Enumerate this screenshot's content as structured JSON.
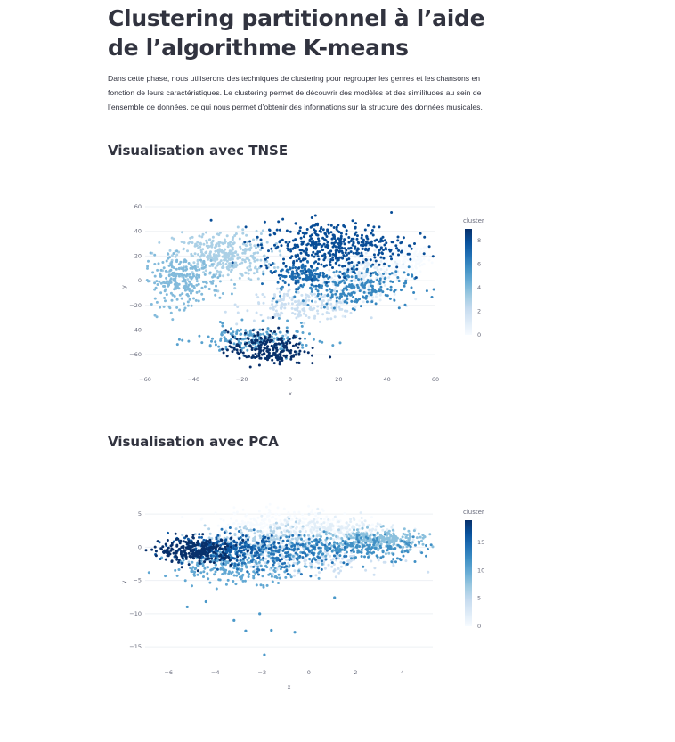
{
  "page": {
    "title": "Clustering partitionnel à l’aide de l’algorithme K-means",
    "intro": "Dans cette phase, nous utiliserons des techniques de clustering pour regrouper les genres et les chansons en fonction de leurs caractéristiques. Le clustering permet de découvrir des modèles et des similitudes au sein de l’ensemble de données, ce qui nous permet d’obtenir des informations sur la structure des données musicales.",
    "section_tnse": "Visualisation avec TNSE",
    "section_pca": "Visualisation avec PCA"
  },
  "colors": {
    "scale": [
      "#f7fbff",
      "#deebf7",
      "#c6dbef",
      "#9ecae1",
      "#6baed6",
      "#4292c6",
      "#2171b5",
      "#08519c",
      "#08306b"
    ]
  },
  "chart_data": [
    {
      "type": "scatter",
      "title": "",
      "xlabel": "x",
      "ylabel": "y",
      "xlim": [
        -60,
        60
      ],
      "ylim": [
        -70,
        60
      ],
      "xticks": [
        -60,
        -40,
        -20,
        0,
        20,
        40,
        60
      ],
      "yticks": [
        60,
        40,
        20,
        0,
        -20,
        -40,
        -60
      ],
      "grid": true,
      "legend": "right",
      "colorbar": {
        "title": "cluster",
        "min": 0,
        "max": 9,
        "ticks": [
          0,
          2,
          4,
          6,
          8
        ]
      },
      "clusters": [
        {
          "cluster": 0,
          "cx": 48,
          "cy": 18,
          "sx": 5,
          "sy": 6,
          "n": 160
        },
        {
          "cluster": 1,
          "cx": 30,
          "cy": 5,
          "sx": 8,
          "sy": 10,
          "n": 220
        },
        {
          "cluster": 2,
          "cx": 5,
          "cy": -20,
          "sx": 12,
          "sy": 6,
          "n": 200
        },
        {
          "cluster": 3,
          "cx": -28,
          "cy": 20,
          "sx": 10,
          "sy": 10,
          "n": 350
        },
        {
          "cluster": 4,
          "cx": -45,
          "cy": 0,
          "sx": 8,
          "sy": 10,
          "n": 260
        },
        {
          "cluster": 5,
          "cx": -15,
          "cy": -48,
          "sx": 12,
          "sy": 6,
          "n": 180
        },
        {
          "cluster": 6,
          "cx": 25,
          "cy": -5,
          "sx": 12,
          "sy": 8,
          "n": 250
        },
        {
          "cluster": 7,
          "cx": 5,
          "cy": 5,
          "sx": 5,
          "sy": 5,
          "n": 120
        },
        {
          "cluster": 8,
          "cx": 18,
          "cy": 28,
          "sx": 15,
          "sy": 10,
          "n": 450
        },
        {
          "cluster": 9,
          "cx": -10,
          "cy": -55,
          "sx": 8,
          "sy": 7,
          "n": 230
        }
      ]
    },
    {
      "type": "scatter",
      "title": "",
      "xlabel": "x",
      "ylabel": "y",
      "xlim": [
        -7,
        5.3
      ],
      "ylim": [
        -17,
        6.5
      ],
      "xticks": [
        -6,
        -4,
        -2,
        0,
        2,
        4
      ],
      "yticks": [
        5,
        0,
        -5,
        -10,
        -15
      ],
      "grid": true,
      "legend": "right",
      "colorbar": {
        "title": "cluster",
        "min": 0,
        "max": 19,
        "ticks": [
          0,
          5,
          10,
          15
        ]
      },
      "clusters": [
        {
          "cluster": 0,
          "cx": -1,
          "cy": 3.5,
          "sx": 1.5,
          "sy": 1.2,
          "n": 280
        },
        {
          "cluster": 2,
          "cx": 1,
          "cy": 2.5,
          "sx": 1.5,
          "sy": 1.0,
          "n": 200
        },
        {
          "cluster": 4,
          "cx": 0,
          "cy": -1.5,
          "sx": 1.6,
          "sy": 1.3,
          "n": 220
        },
        {
          "cluster": 6,
          "cx": -2,
          "cy": 1,
          "sx": 1.4,
          "sy": 1.2,
          "n": 200
        },
        {
          "cluster": 8,
          "cx": 3,
          "cy": 1,
          "sx": 1.0,
          "sy": 0.8,
          "n": 260
        },
        {
          "cluster": 10,
          "cx": -3,
          "cy": -3,
          "sx": 1.5,
          "sy": 1.2,
          "n": 220
        },
        {
          "cluster": 12,
          "cx": 2,
          "cy": 0,
          "sx": 1.6,
          "sy": 1.0,
          "n": 200
        },
        {
          "cluster": 14,
          "cx": -1.5,
          "cy": -1,
          "sx": 1.5,
          "sy": 1.3,
          "n": 200
        },
        {
          "cluster": 16,
          "cx": -3.5,
          "cy": 0,
          "sx": 1.2,
          "sy": 1.0,
          "n": 200
        },
        {
          "cluster": 19,
          "cx": -4.8,
          "cy": -0.5,
          "sx": 0.8,
          "sy": 0.9,
          "n": 260
        }
      ],
      "outliers": [
        {
          "x": -5.2,
          "y": -9
        },
        {
          "x": -3.2,
          "y": -11
        },
        {
          "x": -2.1,
          "y": -10
        },
        {
          "x": -1.6,
          "y": -12.5
        },
        {
          "x": -0.6,
          "y": -12.8
        },
        {
          "x": -1.9,
          "y": -16.2
        },
        {
          "x": -2.7,
          "y": -12.6
        },
        {
          "x": 1.1,
          "y": -7.6
        },
        {
          "x": -4.4,
          "y": -8.2
        }
      ]
    }
  ]
}
